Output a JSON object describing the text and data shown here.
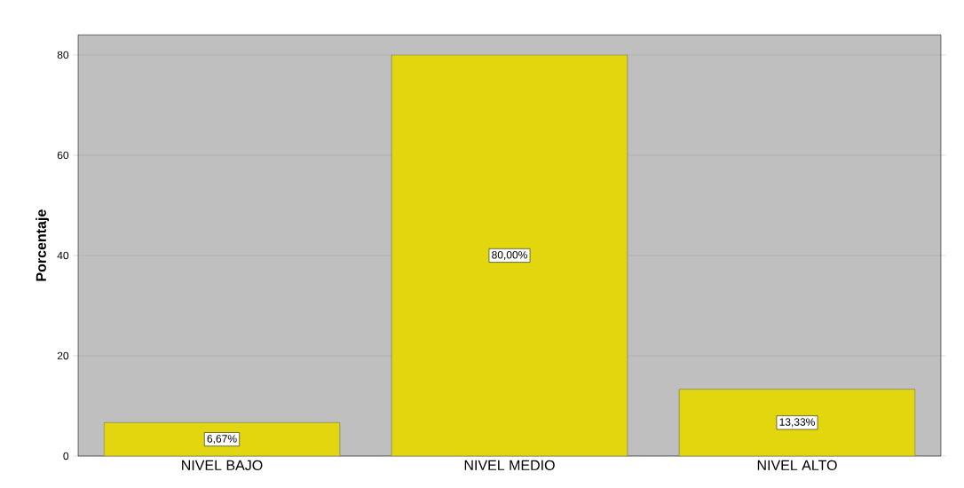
{
  "chart_data": {
    "type": "bar",
    "ylabel": "Porcentaje",
    "categories": [
      "NIVEL  BAJO",
      "NIVEL MEDIO",
      "NIVEL ALTO"
    ],
    "values": [
      6.67,
      80.0,
      13.33
    ],
    "value_labels": [
      "6,67%",
      "80,00%",
      "13,33%"
    ],
    "color": "#e2d70f",
    "ylim": [
      0,
      84
    ],
    "yticks": [
      0,
      20,
      40,
      60,
      80
    ],
    "grid": "y"
  }
}
